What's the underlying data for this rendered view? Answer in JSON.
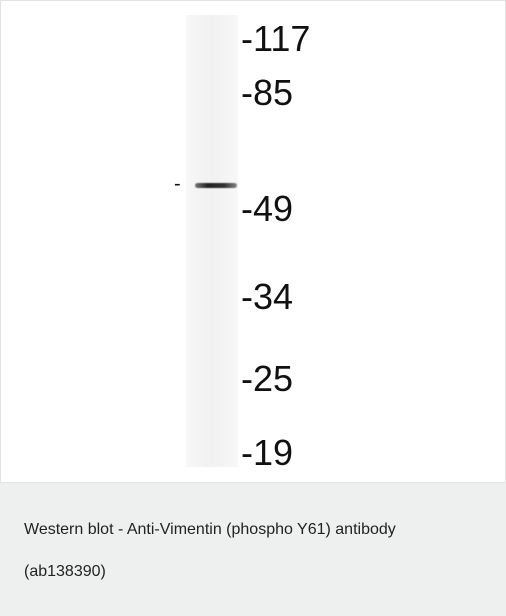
{
  "blot": {
    "ladder": [
      "-117",
      "-85",
      "-49",
      "-34",
      "-25",
      "-19"
    ],
    "band_marker": "-"
  },
  "caption": "Western blot - Anti-Vimentin (phospho Y61) antibody (ab138390)"
}
